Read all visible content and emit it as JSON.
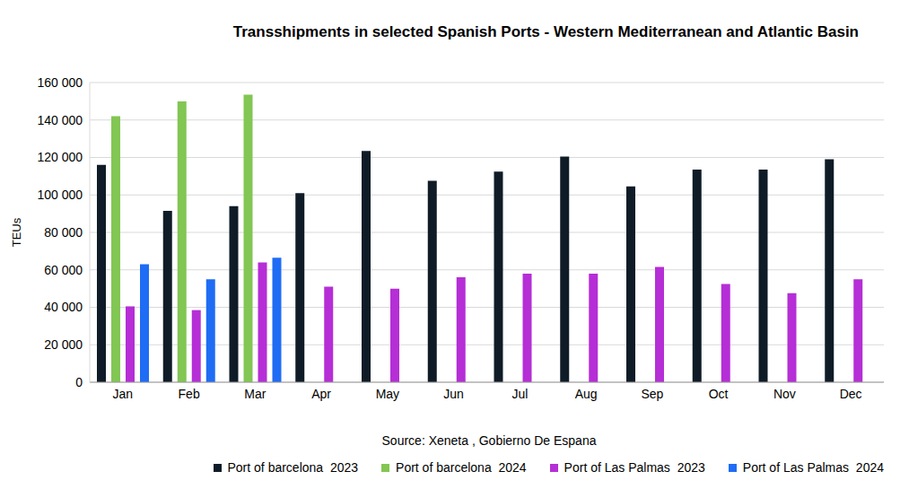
{
  "chart_data": {
    "type": "bar",
    "title": "Transshipments in selected Spanish Ports - Western Mediterranean and Atlantic Basin",
    "subtitle": "Source: Xeneta , Gobierno De Espana",
    "y_label": "TEUs",
    "categories": [
      "Jan",
      "Feb",
      "Mar",
      "Apr",
      "May",
      "Jun",
      "Jul",
      "Aug",
      "Sep",
      "Oct",
      "Nov",
      "Dec"
    ],
    "series": [
      {
        "name": "Port of barcelona  2023",
        "color": "#0f1c27",
        "values": [
          116000,
          91500,
          94000,
          101000,
          123500,
          107500,
          112500,
          120500,
          104500,
          113500,
          113500,
          119000
        ]
      },
      {
        "name": "Port of barcelona  2024",
        "color": "#82c653",
        "values": [
          142000,
          150000,
          153500,
          null,
          null,
          null,
          null,
          null,
          null,
          null,
          null,
          null
        ]
      },
      {
        "name": "Port of Las Palmas  2023",
        "color": "#b52ed6",
        "values": [
          40500,
          38500,
          64000,
          51000,
          50000,
          56000,
          58000,
          58000,
          61500,
          52500,
          47500,
          55000
        ]
      },
      {
        "name": "Port of Las Palmas  2024",
        "color": "#1f6cf5",
        "values": [
          63000,
          55000,
          66500,
          null,
          null,
          null,
          null,
          null,
          null,
          null,
          null,
          null
        ]
      }
    ],
    "ylim": [
      0,
      160000
    ],
    "yticks": [
      0,
      {
        "value": 20000,
        "label": "20 000"
      },
      {
        "value": 40000,
        "label": "40 000"
      },
      {
        "value": 60000,
        "label": "60 000"
      },
      {
        "value": 80000,
        "label": "80 000"
      },
      {
        "value": 100000,
        "label": "100 000"
      },
      {
        "value": 120000,
        "label": "120 000"
      },
      {
        "value": 140000,
        "label": "140 000"
      },
      {
        "value": 160000,
        "label": "160 000"
      }
    ],
    "grid": true,
    "legend": "bottom"
  }
}
